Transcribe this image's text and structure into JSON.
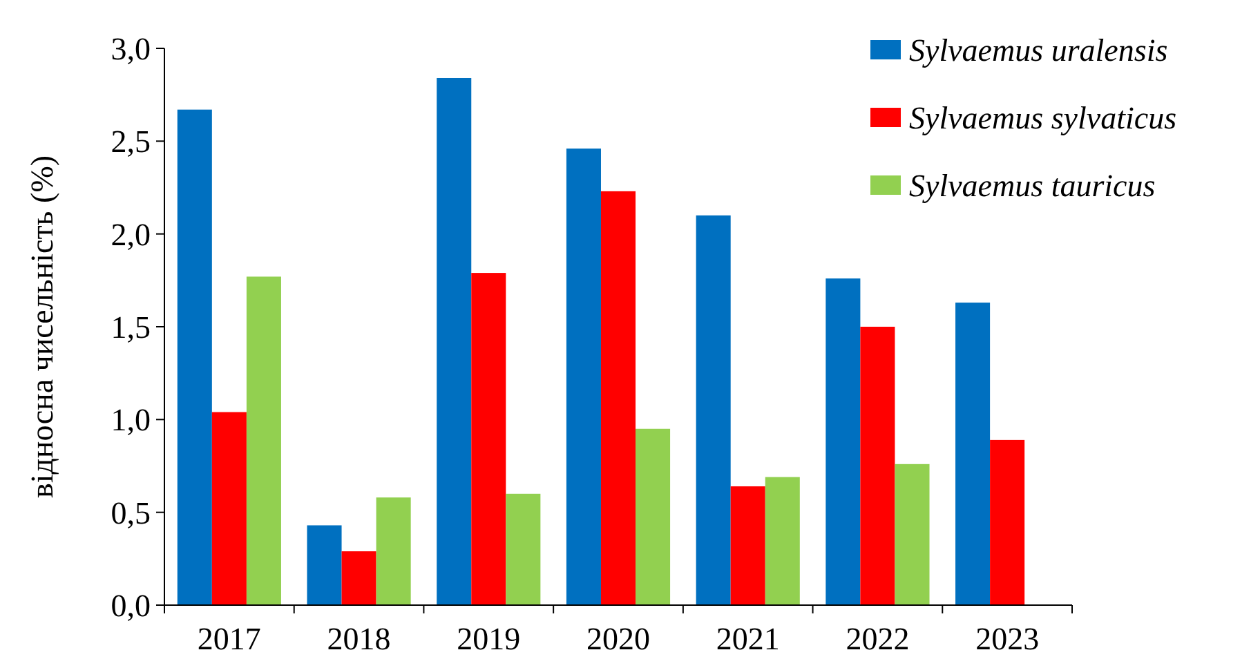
{
  "chart_data": {
    "type": "bar",
    "ylabel": "відносна чисельність (%)",
    "categories": [
      "2017",
      "2018",
      "2019",
      "2020",
      "2021",
      "2022",
      "2023"
    ],
    "series": [
      {
        "name": "Sylvaemus uralensis",
        "color": "#0070c0",
        "values": [
          2.67,
          0.43,
          2.84,
          2.46,
          2.1,
          1.76,
          1.63
        ]
      },
      {
        "name": "Sylvaemus sylvaticus",
        "color": "#ff0000",
        "values": [
          1.04,
          0.29,
          1.79,
          2.23,
          0.64,
          1.5,
          0.89
        ]
      },
      {
        "name": "Sylvaemus tauricus",
        "color": "#92d050",
        "values": [
          1.77,
          0.58,
          0.6,
          0.95,
          0.69,
          0.76,
          null
        ]
      }
    ],
    "ylim": [
      0,
      3
    ],
    "yticks": [
      {
        "value": 0,
        "label": "0,0"
      },
      {
        "value": 0.5,
        "label": "0,5"
      },
      {
        "value": 1,
        "label": "1,0"
      },
      {
        "value": 1.5,
        "label": "1,5"
      },
      {
        "value": 2,
        "label": "2,0"
      },
      {
        "value": 2.5,
        "label": "2,5"
      },
      {
        "value": 3,
        "label": "3,0"
      }
    ],
    "grid": false,
    "legend": "top right"
  }
}
